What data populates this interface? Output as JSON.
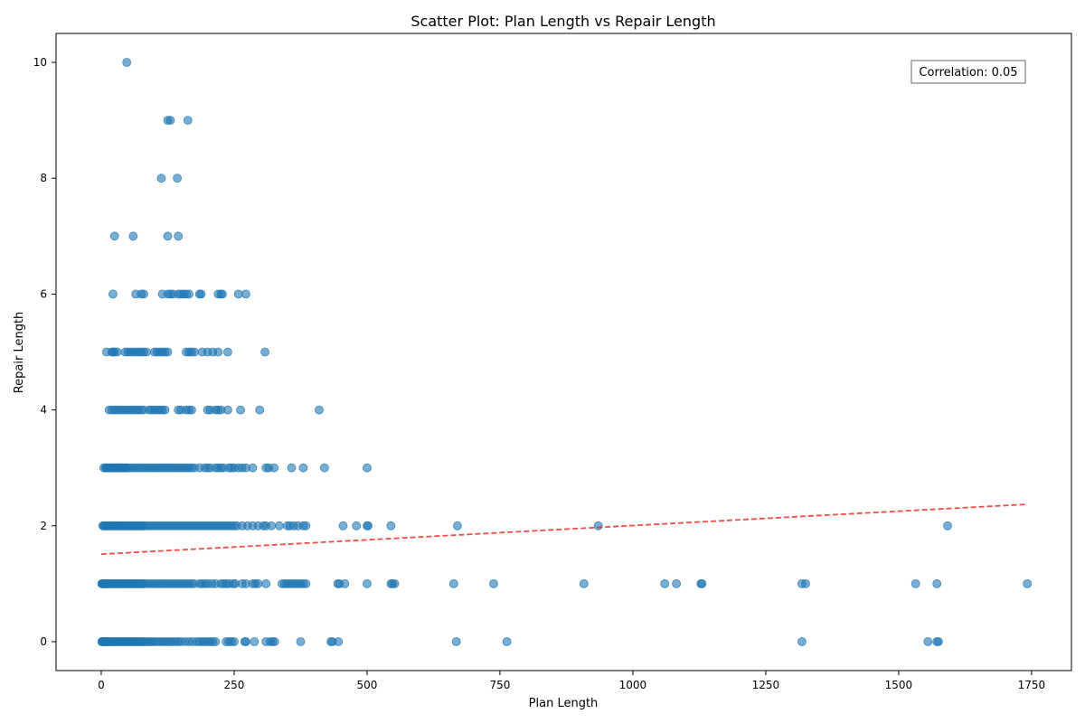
{
  "chart_data": {
    "type": "scatter",
    "title": "Scatter Plot: Plan Length vs Repair Length",
    "xlabel": "Plan Length",
    "ylabel": "Repair Length",
    "xlim": [
      -85,
      1825
    ],
    "ylim": [
      -0.5,
      10.5
    ],
    "xticks": [
      0,
      250,
      500,
      750,
      1000,
      1250,
      1500,
      1750
    ],
    "yticks": [
      0,
      2,
      4,
      6,
      8,
      10
    ],
    "grid": false,
    "annotation": "Correlation: 0.05",
    "annotation_position": "top-right",
    "point_color": "#1f77b4",
    "trend_color": "#e8312a",
    "trend_line": {
      "x": [
        0,
        1740
      ],
      "y": [
        1.51,
        2.37
      ],
      "style": "dashed"
    },
    "points": {
      "0": [
        1,
        2,
        3,
        4,
        5,
        6,
        7,
        8,
        9,
        10,
        12,
        14,
        16,
        18,
        20,
        22,
        25,
        28,
        30,
        33,
        35,
        38,
        40,
        43,
        45,
        48,
        50,
        53,
        55,
        58,
        60,
        63,
        65,
        68,
        70,
        73,
        75,
        78,
        80,
        84,
        88,
        92,
        96,
        100,
        105,
        110,
        115,
        120,
        125,
        130,
        135,
        140,
        145,
        150,
        158,
        165,
        172,
        180,
        185,
        190,
        195,
        200,
        205,
        210,
        215,
        235,
        240,
        245,
        250,
        270,
        272,
        288,
        310,
        318,
        322,
        326,
        375,
        432,
        435,
        446,
        668,
        763,
        1318,
        1555,
        1572,
        1575
      ],
      "1": [
        1,
        2,
        3,
        4,
        5,
        6,
        7,
        8,
        9,
        10,
        12,
        14,
        16,
        18,
        20,
        22,
        25,
        28,
        30,
        33,
        35,
        38,
        40,
        43,
        45,
        48,
        50,
        53,
        55,
        58,
        60,
        63,
        65,
        68,
        70,
        73,
        75,
        78,
        80,
        85,
        90,
        95,
        100,
        105,
        110,
        115,
        120,
        125,
        130,
        135,
        140,
        145,
        150,
        155,
        160,
        165,
        170,
        175,
        185,
        190,
        195,
        200,
        208,
        215,
        225,
        230,
        235,
        240,
        248,
        252,
        265,
        272,
        285,
        290,
        295,
        310,
        340,
        345,
        350,
        355,
        360,
        365,
        370,
        375,
        380,
        385,
        445,
        448,
        458,
        500,
        545,
        548,
        552,
        663,
        738,
        908,
        1060,
        1082,
        1128,
        1130,
        1318,
        1325,
        1532,
        1572,
        1742
      ],
      "2": [
        3,
        5,
        7,
        9,
        11,
        13,
        15,
        18,
        20,
        23,
        25,
        28,
        30,
        33,
        35,
        38,
        40,
        43,
        45,
        48,
        50,
        53,
        55,
        58,
        60,
        63,
        65,
        68,
        70,
        73,
        75,
        78,
        80,
        85,
        90,
        95,
        100,
        105,
        110,
        115,
        120,
        125,
        130,
        135,
        140,
        145,
        150,
        155,
        160,
        165,
        170,
        175,
        180,
        185,
        190,
        195,
        200,
        205,
        210,
        215,
        220,
        225,
        230,
        235,
        240,
        245,
        250,
        255,
        265,
        275,
        285,
        295,
        305,
        310,
        320,
        335,
        350,
        355,
        362,
        370,
        380,
        385,
        455,
        480,
        500,
        502,
        545,
        670,
        935,
        1592
      ],
      "3": [
        5,
        8,
        10,
        12,
        15,
        18,
        20,
        23,
        25,
        28,
        30,
        33,
        35,
        38,
        40,
        43,
        45,
        48,
        50,
        55,
        60,
        65,
        70,
        75,
        80,
        85,
        90,
        95,
        100,
        105,
        110,
        115,
        120,
        125,
        130,
        135,
        140,
        145,
        150,
        155,
        160,
        165,
        170,
        175,
        185,
        195,
        200,
        205,
        215,
        220,
        225,
        230,
        240,
        245,
        250,
        258,
        265,
        272,
        285,
        310,
        315,
        325,
        358,
        380,
        420,
        500
      ],
      "4": [
        15,
        20,
        25,
        30,
        35,
        40,
        45,
        50,
        55,
        60,
        65,
        70,
        75,
        80,
        90,
        95,
        100,
        105,
        110,
        115,
        120,
        145,
        150,
        160,
        165,
        170,
        200,
        205,
        215,
        220,
        225,
        238,
        262,
        298,
        410
      ],
      "5": [
        10,
        20,
        22,
        25,
        30,
        45,
        50,
        55,
        60,
        65,
        70,
        75,
        80,
        85,
        100,
        105,
        110,
        115,
        120,
        125,
        160,
        165,
        170,
        175,
        190,
        200,
        210,
        220,
        238,
        308
      ],
      "6": [
        22,
        65,
        75,
        80,
        115,
        125,
        130,
        135,
        145,
        150,
        155,
        160,
        165,
        185,
        188,
        220,
        225,
        228,
        258,
        272
      ],
      "7": [
        25,
        60,
        125,
        145
      ],
      "8": [
        113,
        143
      ],
      "9": [
        125,
        130,
        163
      ],
      "10": [
        48
      ]
    }
  }
}
